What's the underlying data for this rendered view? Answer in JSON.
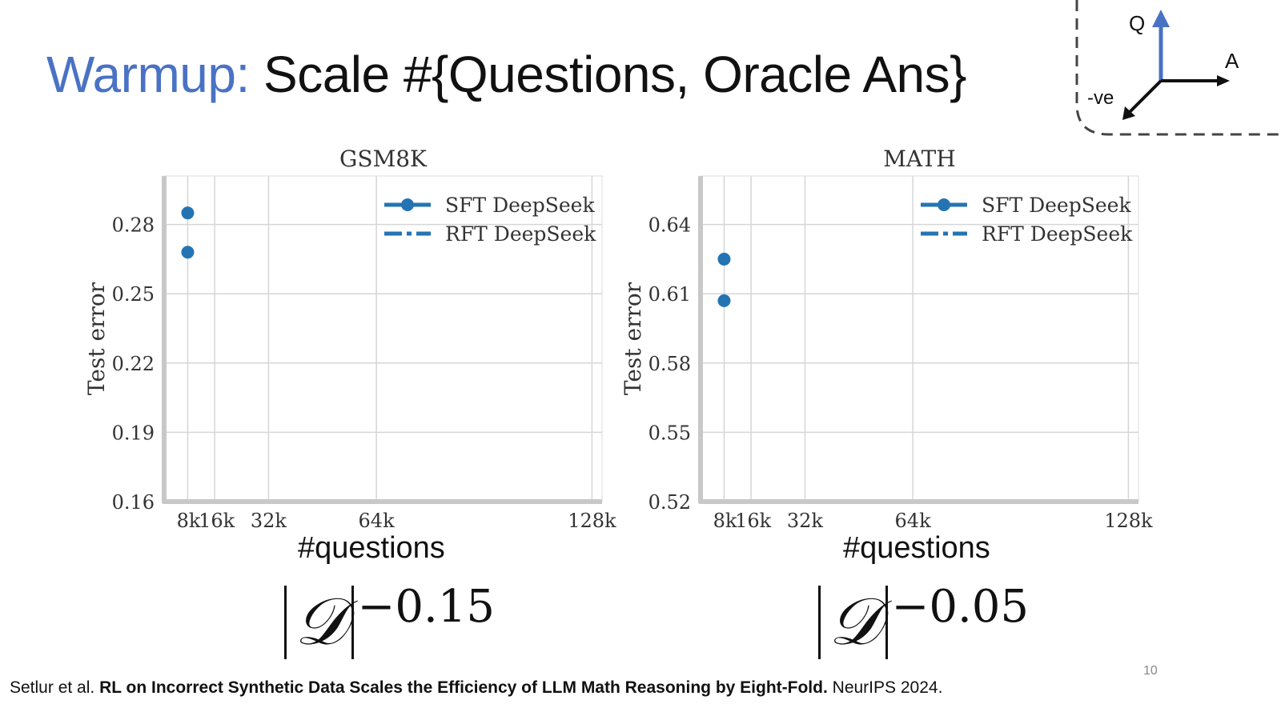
{
  "slide": {
    "title_accent": "Warmup:",
    "title_main": " Scale #{Questions, Oracle Ans}",
    "page_number": "10",
    "citation_authors": "Setlur et al. ",
    "citation_title": "RL on Incorrect Synthetic Data Scales the Efficiency of LLM Math Reasoning by Eight-Fold.",
    "citation_venue": " NeurIPS 2024."
  },
  "axes_diagram": {
    "q_label": "Q",
    "a_label": "A",
    "neg_label": "-ve",
    "q_color": "#4a72c4",
    "line_color": "#111111"
  },
  "formulas": [
    {
      "symbol": "𝒟",
      "exponent": "−0.15"
    },
    {
      "symbol": "𝒟",
      "exponent": "−0.05"
    }
  ],
  "x_caption": "#questions",
  "chart_data": [
    {
      "type": "line",
      "title": "GSM8K",
      "xlabel": "#questions",
      "ylabel": "Test error",
      "x_ticks": [
        "8k",
        "16k",
        "32k",
        "64k",
        "128k"
      ],
      "x_tick_values": [
        8000,
        16000,
        32000,
        64000,
        128000
      ],
      "xlim": [
        1000,
        131000
      ],
      "y_ticks": [
        "0.16",
        "0.19",
        "0.22",
        "0.25",
        "0.28"
      ],
      "y_tick_values": [
        0.16,
        0.19,
        0.22,
        0.25,
        0.28
      ],
      "ylim": [
        0.16,
        0.301
      ],
      "grid": true,
      "legend_position": "top-right",
      "series": [
        {
          "name": "SFT DeepSeek",
          "style": "solid-marker",
          "color": "#2474b4",
          "x": [
            8000,
            8000
          ],
          "y": [
            0.285,
            0.268
          ]
        },
        {
          "name": "RFT DeepSeek",
          "style": "dashdot",
          "color": "#2474b4",
          "x": [],
          "y": []
        }
      ]
    },
    {
      "type": "line",
      "title": "MATH",
      "xlabel": "#questions",
      "ylabel": "Test error",
      "x_ticks": [
        "8k",
        "16k",
        "32k",
        "64k",
        "128k"
      ],
      "x_tick_values": [
        8000,
        16000,
        32000,
        64000,
        128000
      ],
      "xlim": [
        1000,
        131000
      ],
      "y_ticks": [
        "0.52",
        "0.55",
        "0.58",
        "0.61",
        "0.64"
      ],
      "y_tick_values": [
        0.52,
        0.55,
        0.58,
        0.61,
        0.64
      ],
      "ylim": [
        0.52,
        0.661
      ],
      "grid": true,
      "legend_position": "top-right",
      "series": [
        {
          "name": "SFT DeepSeek",
          "style": "solid-marker",
          "color": "#2474b4",
          "x": [
            8000,
            8000
          ],
          "y": [
            0.625,
            0.607
          ]
        },
        {
          "name": "RFT DeepSeek",
          "style": "dashdot",
          "color": "#2474b4",
          "x": [],
          "y": []
        }
      ]
    }
  ]
}
